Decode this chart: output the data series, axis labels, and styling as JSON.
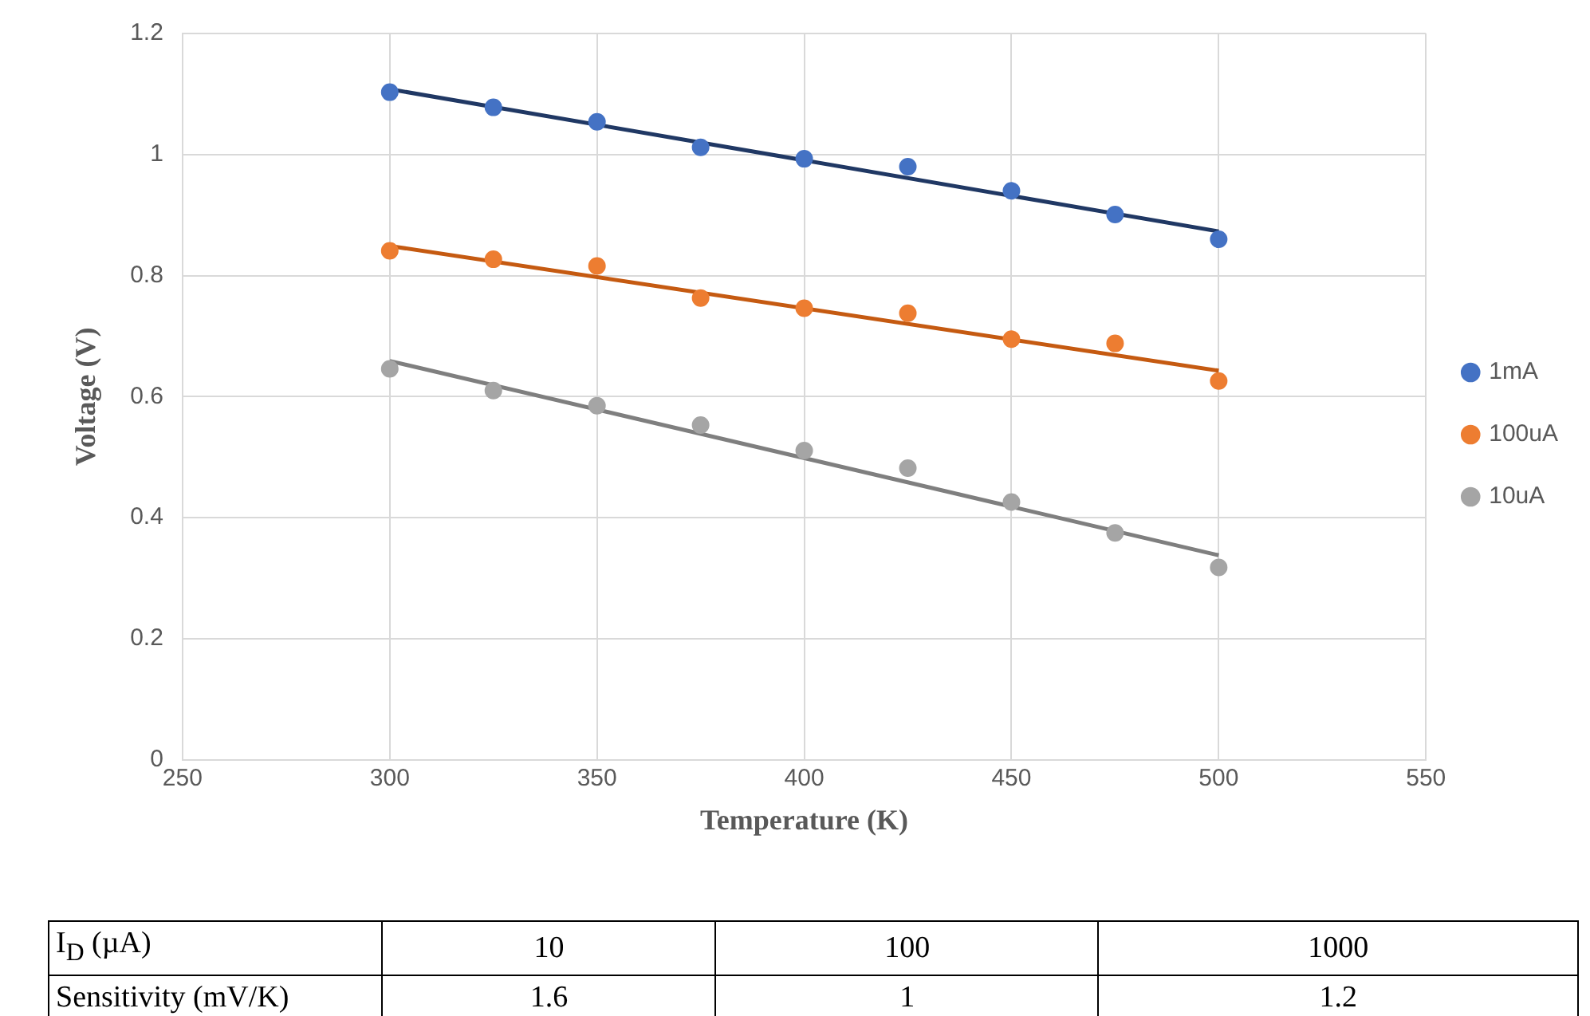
{
  "chart_data": {
    "type": "scatter",
    "xlabel": "Temperature (K)",
    "ylabel": "Voltage (V)",
    "x": [
      300,
      325,
      350,
      375,
      400,
      425,
      450,
      475,
      500
    ],
    "series": [
      {
        "name": "1mA",
        "color": "#4472c4",
        "values": [
          1.103,
          1.078,
          1.054,
          1.012,
          0.993,
          0.98,
          0.94,
          0.901,
          0.86
        ]
      },
      {
        "name": "100uA",
        "color": "#ed7d31",
        "values": [
          0.841,
          0.827,
          0.816,
          0.763,
          0.746,
          0.738,
          0.695,
          0.688,
          0.626
        ]
      },
      {
        "name": "10uA",
        "color": "#a5a5a5",
        "values": [
          0.646,
          0.61,
          0.585,
          0.553,
          0.511,
          0.482,
          0.426,
          0.375,
          0.318
        ]
      },
      {
        "type": "line",
        "marker": "none",
        "color": "#203864",
        "values": [
          1.108,
          null,
          null,
          null,
          null,
          null,
          null,
          null,
          0.873
        ]
      },
      {
        "type": "line",
        "marker": "none",
        "color": "#c55a11",
        "values": [
          0.849,
          null,
          null,
          null,
          null,
          null,
          null,
          null,
          0.643
        ]
      },
      {
        "type": "line",
        "marker": "none",
        "color": "#7f7f7f",
        "values": [
          0.659,
          null,
          null,
          null,
          null,
          null,
          null,
          null,
          0.338
        ]
      }
    ],
    "xlim": [
      250,
      550
    ],
    "xticks": [
      250,
      300,
      350,
      400,
      450,
      500,
      550
    ],
    "ylim": [
      0,
      1.2
    ],
    "yticks": [
      0,
      0.2,
      0.4,
      0.6,
      0.8,
      1,
      1.2
    ],
    "grid": true,
    "legend": "right",
    "marker": "circle",
    "annotations": [
      "I$_{D}$ (µA)",
      "10",
      "100",
      "1000",
      "Sensitivity (mV/K)",
      "1.6",
      "1",
      "1.2"
    ]
  }
}
